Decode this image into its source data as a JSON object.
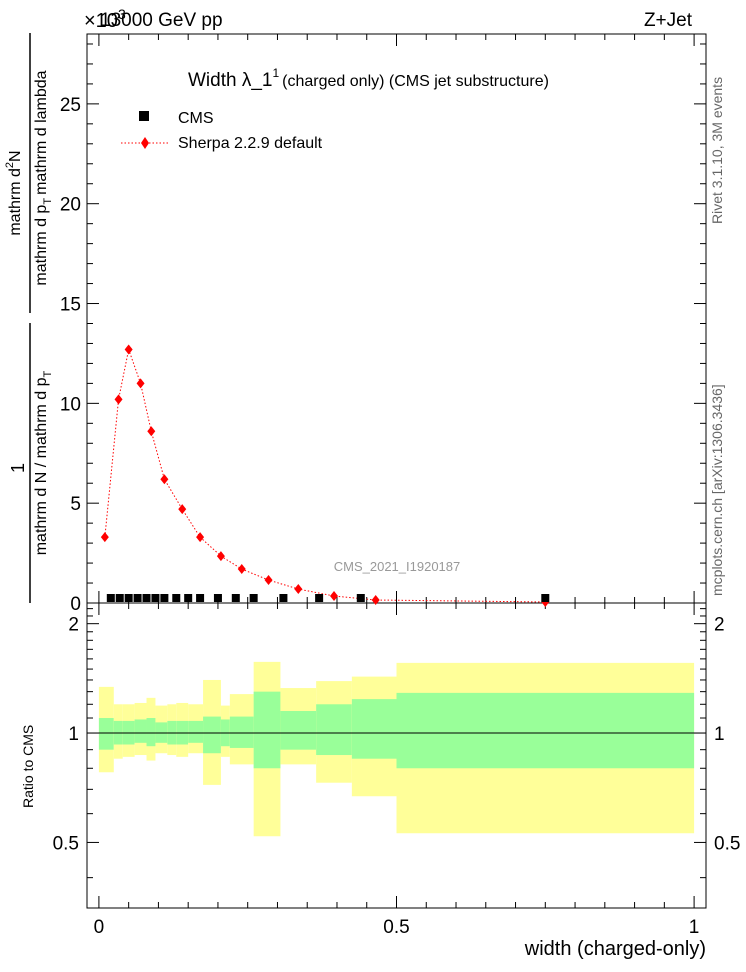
{
  "header": {
    "left": "13000 GeV pp",
    "right": "Z+Jet",
    "exponent_label": "×10",
    "exponent_power": "3"
  },
  "side_labels": {
    "rivet": "Rivet 3.1.10,  3M events",
    "mcplots": "mcplots.cern.ch [arXiv:1306.3436]"
  },
  "chart_data": [
    {
      "type": "scatter",
      "title": "Width λ_1",
      "title_superscript": "1",
      "subtitle": "(charged only) (CMS jet substructure)",
      "analysis_id": "CMS_2021_I1920187",
      "ylabel": "1 / (mathrm d N / mathrm d p_T) · mathrm d²N / (mathrm d p_T mathrm d lambda)",
      "ylabel_parts": {
        "numerator": "1",
        "denominator": "mathrm d N / mathrm d p",
        "denominator_sub": "T",
        "denominator_tail": "mathrm d p",
        "denominator_tail_sub": "T",
        "denominator_end": "mathrm d lambda",
        "right_numerator": "mathrm d",
        "right_sup": "2",
        "right_end": "N"
      },
      "y_scale_factor": "1e3",
      "xlim": [
        0,
        1
      ],
      "ylim": [
        0,
        28.5
      ],
      "yticks": [
        0,
        5,
        10,
        15,
        20,
        25
      ],
      "ytick_labels": [
        "0",
        "5",
        "10",
        "15",
        "20",
        "25"
      ],
      "legend": [
        {
          "name": "CMS",
          "color": "#000000",
          "marker": "square"
        },
        {
          "name": "Sherpa 2.2.9 default",
          "color": "#ff0000",
          "marker": "diamond",
          "line": "dotted"
        }
      ],
      "legend_position": "top-left",
      "series": [
        {
          "name": "CMS",
          "x": [
            0.02,
            0.035,
            0.05,
            0.065,
            0.08,
            0.095,
            0.11,
            0.13,
            0.15,
            0.17,
            0.2,
            0.23,
            0.26,
            0.31,
            0.37,
            0.44,
            0.75
          ],
          "y": [
            0.05,
            0.05,
            0.05,
            0.05,
            0.05,
            0.05,
            0.05,
            0.05,
            0.05,
            0.05,
            0.05,
            0.05,
            0.05,
            0.05,
            0.05,
            0.05,
            0.05
          ]
        },
        {
          "name": "Sherpa 2.2.9 default",
          "x": [
            0.01,
            0.033,
            0.05,
            0.07,
            0.088,
            0.11,
            0.14,
            0.17,
            0.205,
            0.24,
            0.285,
            0.335,
            0.395,
            0.465,
            0.75
          ],
          "y": [
            3.3,
            10.2,
            12.7,
            11.0,
            8.6,
            6.2,
            4.7,
            3.3,
            2.35,
            1.7,
            1.15,
            0.7,
            0.35,
            0.15,
            0.05
          ]
        }
      ]
    },
    {
      "type": "area",
      "ylabel": "Ratio to CMS",
      "xlabel": "width (charged-only)",
      "xlim": [
        -0.02,
        1.02
      ],
      "ylim": [
        0.33,
        2.28
      ],
      "xticks": [
        0,
        0.5,
        1
      ],
      "xtick_labels": [
        "0",
        "0.5",
        "1"
      ],
      "yticks": [
        0.5,
        1,
        2
      ],
      "ytick_labels": [
        "0.5",
        "1",
        "2"
      ],
      "reference_line": 1,
      "bins": [
        {
          "x0": 0.0,
          "x1": 0.025,
          "yellow": [
            0.78,
            1.34
          ],
          "green": [
            0.9,
            1.1
          ]
        },
        {
          "x0": 0.025,
          "x1": 0.04,
          "yellow": [
            0.85,
            1.2
          ],
          "green": [
            0.93,
            1.08
          ]
        },
        {
          "x0": 0.04,
          "x1": 0.06,
          "yellow": [
            0.86,
            1.2
          ],
          "green": [
            0.93,
            1.08
          ]
        },
        {
          "x0": 0.06,
          "x1": 0.08,
          "yellow": [
            0.87,
            1.21
          ],
          "green": [
            0.94,
            1.09
          ]
        },
        {
          "x0": 0.08,
          "x1": 0.095,
          "yellow": [
            0.84,
            1.25
          ],
          "green": [
            0.92,
            1.1
          ]
        },
        {
          "x0": 0.095,
          "x1": 0.115,
          "yellow": [
            0.88,
            1.19
          ],
          "green": [
            0.94,
            1.07
          ]
        },
        {
          "x0": 0.115,
          "x1": 0.13,
          "yellow": [
            0.87,
            1.2
          ],
          "green": [
            0.93,
            1.08
          ]
        },
        {
          "x0": 0.13,
          "x1": 0.15,
          "yellow": [
            0.86,
            1.21
          ],
          "green": [
            0.93,
            1.08
          ]
        },
        {
          "x0": 0.15,
          "x1": 0.175,
          "yellow": [
            0.88,
            1.2
          ],
          "green": [
            0.94,
            1.08
          ]
        },
        {
          "x0": 0.175,
          "x1": 0.205,
          "yellow": [
            0.72,
            1.4
          ],
          "green": [
            0.88,
            1.11
          ]
        },
        {
          "x0": 0.205,
          "x1": 0.22,
          "yellow": [
            0.86,
            1.19
          ],
          "green": [
            0.92,
            1.09
          ]
        },
        {
          "x0": 0.22,
          "x1": 0.26,
          "yellow": [
            0.82,
            1.28
          ],
          "green": [
            0.91,
            1.11
          ]
        },
        {
          "x0": 0.26,
          "x1": 0.305,
          "yellow": [
            0.52,
            1.57
          ],
          "green": [
            0.8,
            1.3
          ]
        },
        {
          "x0": 0.305,
          "x1": 0.365,
          "yellow": [
            0.82,
            1.33
          ],
          "green": [
            0.9,
            1.15
          ]
        },
        {
          "x0": 0.365,
          "x1": 0.425,
          "yellow": [
            0.73,
            1.39
          ],
          "green": [
            0.87,
            1.2
          ]
        },
        {
          "x0": 0.425,
          "x1": 0.5,
          "yellow": [
            0.67,
            1.43
          ],
          "green": [
            0.85,
            1.24
          ]
        },
        {
          "x0": 0.5,
          "x1": 1.0,
          "yellow": [
            0.53,
            1.56
          ],
          "green": [
            0.8,
            1.29
          ]
        }
      ],
      "colors": {
        "yellow": "#ffff99",
        "green": "#99ff99"
      }
    }
  ]
}
